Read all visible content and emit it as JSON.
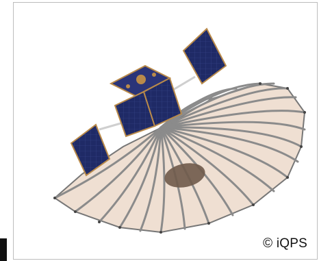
{
  "image": {
    "credit": "© iQPS"
  },
  "colors": {
    "reflector": "#efdfd2",
    "rib": "#8b8b8b",
    "panel": "#1f2a66",
    "panel_frame": "#b98a4a",
    "bus_top": "#2a3478",
    "feed": "#6f5a4a"
  },
  "icons": {
    "satellite": "sar-satellite-illustration"
  }
}
